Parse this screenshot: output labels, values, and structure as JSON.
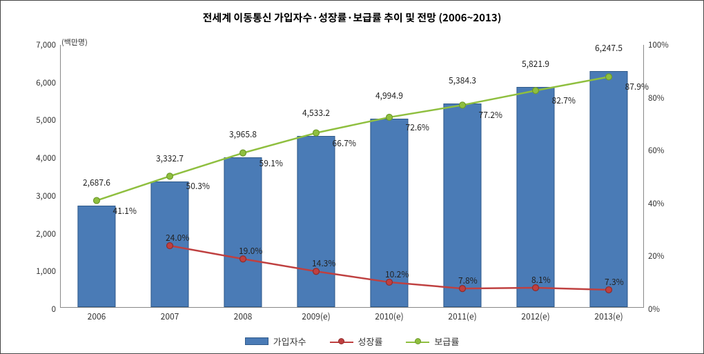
{
  "chart": {
    "type": "bar+line",
    "title": "전세계 이동통신 가입자수·성장률·보급률 추이 및 전망 (2006~2013)",
    "title_fontsize": 15,
    "unit_label": "(백만명)",
    "unit_label_fontsize": 11,
    "background_color": "#ffffff",
    "axis_color": "#888888",
    "label_color": "#333333",
    "categories": [
      "2006",
      "2007",
      "2008",
      "2009(e)",
      "2010(e)",
      "2011(e)",
      "2012(e)",
      "2013(e)"
    ],
    "left_axis": {
      "min": 0,
      "max": 7000,
      "step": 1000,
      "tick_labels": [
        "0",
        "1,000",
        "2,000",
        "3,000",
        "4,000",
        "5,000",
        "6,000",
        "7,000"
      ],
      "tick_fontsize": 11.5
    },
    "right_axis": {
      "min": 0,
      "max": 100,
      "step": 20,
      "tick_labels": [
        "0%",
        "20%",
        "40%",
        "60%",
        "80%",
        "100%"
      ],
      "tick_fontsize": 11.5
    },
    "series": {
      "subscribers": {
        "label": "가입자수",
        "render": "bar",
        "axis": "left",
        "color": "#4a7bb6",
        "border_color": "#2f5a8a",
        "bar_width_frac": 0.52,
        "values": [
          2687.6,
          3332.7,
          3965.8,
          4533.2,
          4994.9,
          5384.3,
          5821.9,
          6247.5
        ],
        "value_labels": [
          "2,687.6",
          "3,332.7",
          "3,965.8",
          "4,533.2",
          "4,994.9",
          "5,384.3",
          "5,821.9",
          "6,247.5"
        ],
        "label_fontsize": 12
      },
      "penetration": {
        "label": "보급률",
        "render": "line",
        "axis": "right",
        "color": "#8fbf3f",
        "marker_fill": "#8fbf3f",
        "marker_border": "#6d9a2a",
        "line_width": 2.5,
        "marker_size": 9,
        "values": [
          41.1,
          50.3,
          59.1,
          66.7,
          72.6,
          77.2,
          82.7,
          87.9
        ],
        "value_labels": [
          "41.1%",
          "50.3%",
          "59.1%",
          "66.7%",
          "72.6%",
          "77.2%",
          "82.7%",
          "87.9%"
        ],
        "label_fontsize": 12
      },
      "growth": {
        "label": "성장률",
        "render": "line",
        "axis": "right",
        "color": "#bf4040",
        "marker_fill": "#bf4040",
        "marker_border": "#8f2b2b",
        "line_width": 2.5,
        "marker_size": 9,
        "values": [
          null,
          24.0,
          19.0,
          14.3,
          10.2,
          7.8,
          8.1,
          7.3
        ],
        "value_labels": [
          null,
          "24.0%",
          "19.0%",
          "14.3%",
          "10.2%",
          "7.8%",
          "8.1%",
          "7.3%"
        ],
        "label_fontsize": 12
      }
    },
    "legend_order": [
      "subscribers",
      "growth",
      "penetration"
    ]
  }
}
